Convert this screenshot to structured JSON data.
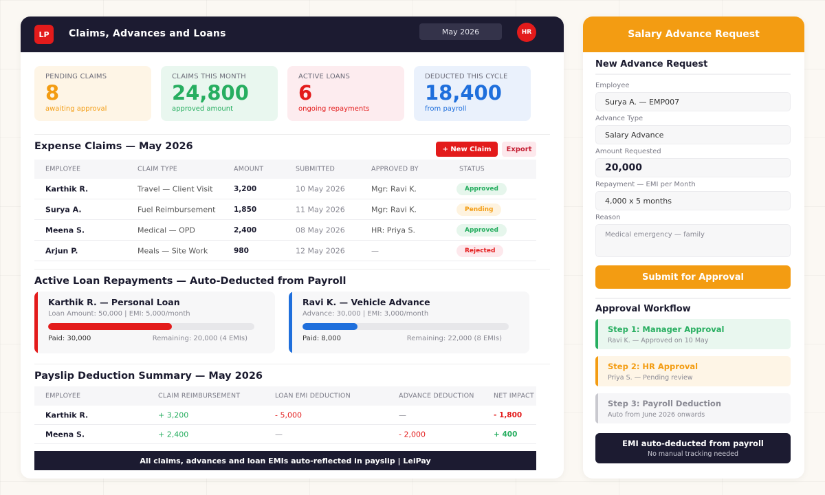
{
  "header": {
    "logo": "LP",
    "title": "Claims, Advances and Loans",
    "month": "May 2026",
    "avatar": "HR"
  },
  "kpis": [
    {
      "label": "PENDING CLAIMS",
      "value": "8",
      "sub": "awaiting approval",
      "color": "#f39c12",
      "bg": "#fef5e6"
    },
    {
      "label": "CLAIMS THIS MONTH",
      "value": "24,800",
      "sub": "approved amount",
      "color": "#27ae60",
      "bg": "#e9f7ef"
    },
    {
      "label": "ACTIVE LOANS",
      "value": "6",
      "sub": "ongoing repayments",
      "color": "#e31b1b",
      "bg": "#fdecef"
    },
    {
      "label": "DEDUCTED THIS CYCLE",
      "value": "18,400",
      "sub": "from payroll",
      "color": "#1f6fdc",
      "bg": "#eaf1fc"
    }
  ],
  "claims": {
    "title": "Expense Claims — May 2026",
    "new_label": "+ New Claim",
    "export_label": "Export",
    "columns": [
      "EMPLOYEE",
      "CLAIM TYPE",
      "AMOUNT",
      "SUBMITTED",
      "APPROVED BY",
      "STATUS"
    ],
    "rows": [
      {
        "employee": "Karthik R.",
        "type": "Travel — Client Visit",
        "amount": "3,200",
        "submitted": "10 May 2026",
        "approved_by": "Mgr: Ravi K.",
        "status": "Approved"
      },
      {
        "employee": "Surya A.",
        "type": "Fuel Reimbursement",
        "amount": "1,850",
        "submitted": "11 May 2026",
        "approved_by": "Mgr: Ravi K.",
        "status": "Pending"
      },
      {
        "employee": "Meena S.",
        "type": "Medical — OPD",
        "amount": "2,400",
        "submitted": "08 May 2026",
        "approved_by": "HR: Priya S.",
        "status": "Approved"
      },
      {
        "employee": "Arjun P.",
        "type": "Meals — Site Work",
        "amount": "980",
        "submitted": "12 May 2026",
        "approved_by": "—",
        "status": "Rejected"
      }
    ]
  },
  "status_colors": {
    "Approved": {
      "bg": "#e6f6ec",
      "fg": "#27ae60"
    },
    "Pending": {
      "bg": "#fef3df",
      "fg": "#f39c12"
    },
    "Rejected": {
      "bg": "#fde8ec",
      "fg": "#e31b1b"
    }
  },
  "loans": {
    "title": "Active Loan Repayments — Auto-Deducted from Payroll",
    "cards": [
      {
        "title": "Karthik R. — Personal Loan",
        "sub": "Loan Amount: 50,000 | EMI: 5,000/month",
        "progress": 0.6,
        "paid": "Paid: 30,000",
        "remaining": "Remaining: 20,000 (4 EMIs)",
        "color": "#e31b1b"
      },
      {
        "title": "Ravi K. — Vehicle Advance",
        "sub": "Advance: 30,000 | EMI: 3,000/month",
        "progress": 0.267,
        "paid": "Paid: 8,000",
        "remaining": "Remaining: 22,000 (8 EMIs)",
        "color": "#1f6fdc"
      }
    ]
  },
  "payslip": {
    "title": "Payslip Deduction Summary — May 2026",
    "columns": [
      "EMPLOYEE",
      "CLAIM REIMBURSEMENT",
      "LOAN EMI DEDUCTION",
      "ADVANCE DEDUCTION",
      "NET IMPACT"
    ],
    "rows": [
      {
        "employee": "Karthik R.",
        "claim": "+ 3,200",
        "loan": "- 5,000",
        "advance": "—",
        "net": "- 1,800"
      },
      {
        "employee": "Meena S.",
        "claim": "+ 2,400",
        "loan": "—",
        "advance": "- 2,000",
        "net": "+ 400"
      }
    ],
    "footer": "All claims, advances and loan EMIs auto-reflected in payslip | LeiPay"
  },
  "advance": {
    "header": "Salary Advance Request",
    "form_title": "New Advance Request",
    "fields": [
      {
        "label": "Employee",
        "value": "Surya A. — EMP007"
      },
      {
        "label": "Advance Type",
        "value": "Salary Advance"
      },
      {
        "label": "Amount Requested",
        "value": "20,000"
      },
      {
        "label": "Repayment — EMI per Month",
        "value": "4,000 x 5 months"
      },
      {
        "label": "Reason",
        "value": "Medical emergency — family"
      }
    ],
    "submit_label": "Submit for Approval",
    "workflow_title": "Approval Workflow",
    "steps": [
      {
        "title": "Step 1: Manager Approval",
        "sub": "Ravi K. — Approved on 10 May",
        "color": "#27ae60",
        "bg": "#e9f7ef"
      },
      {
        "title": "Step 2: HR Approval",
        "sub": "Priya S. — Pending review",
        "color": "#f39c12",
        "bg": "#fef5e6"
      },
      {
        "title": "Step 3: Payroll Deduction",
        "sub": "Auto from June 2026 onwards",
        "color": "#8a8a94",
        "bg": "#f6f6f8",
        "accent": "#c9c9cf"
      }
    ],
    "emi_title": "EMI auto-deducted from payroll",
    "emi_sub": "No manual tracking needed"
  }
}
